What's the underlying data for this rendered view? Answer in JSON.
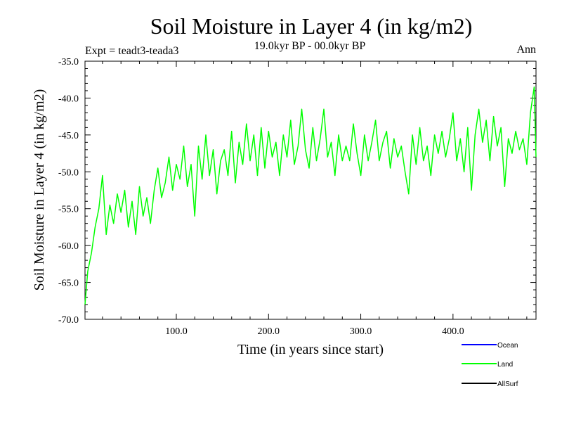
{
  "chart_data": {
    "type": "line",
    "title": "Soil Moisture in Layer 4 (in kg/m2)",
    "subtitle": "19.0kyr BP - 00.0kyr BP",
    "left_annotation": "Expt = teadt3-teada3",
    "right_annotation": "Ann",
    "xlabel": "Time (in years since start)",
    "ylabel": "Soil Moisture in Layer 4 (in kg/m2)",
    "xlim": [
      1,
      490
    ],
    "ylim": [
      -70.0,
      -35.0
    ],
    "x_ticks": [
      100,
      200,
      300,
      400
    ],
    "x_tick_labels": [
      "100.0",
      "200.0",
      "300.0",
      "400.0"
    ],
    "y_ticks": [
      -35,
      -40,
      -45,
      -50,
      -55,
      -60,
      -65,
      -70
    ],
    "y_tick_labels": [
      "-35.0",
      "-40.0",
      "-45.0",
      "-50.0",
      "-55.0",
      "-60.0",
      "-65.0",
      "-70.0"
    ],
    "legend": [
      {
        "name": "Ocean",
        "color": "#0000ff"
      },
      {
        "name": "Land",
        "color": "#00ff00"
      },
      {
        "name": "AllSurf",
        "color": "#000000"
      }
    ],
    "series": [
      {
        "name": "Land",
        "color": "#00ff00",
        "x": [
          1,
          4,
          8,
          12,
          16,
          20,
          24,
          28,
          32,
          36,
          40,
          44,
          48,
          52,
          56,
          60,
          64,
          68,
          72,
          76,
          80,
          84,
          88,
          92,
          96,
          100,
          104,
          108,
          112,
          116,
          120,
          124,
          128,
          132,
          136,
          140,
          144,
          148,
          152,
          156,
          160,
          164,
          168,
          172,
          176,
          180,
          184,
          188,
          192,
          196,
          200,
          204,
          208,
          212,
          216,
          220,
          224,
          228,
          232,
          236,
          240,
          244,
          248,
          252,
          256,
          260,
          264,
          268,
          272,
          276,
          280,
          284,
          288,
          292,
          296,
          300,
          304,
          308,
          312,
          316,
          320,
          324,
          328,
          332,
          336,
          340,
          344,
          348,
          352,
          356,
          360,
          364,
          368,
          372,
          376,
          380,
          384,
          388,
          392,
          396,
          400,
          404,
          408,
          412,
          416,
          420,
          424,
          428,
          432,
          436,
          440,
          444,
          448,
          452,
          456,
          460,
          464,
          468,
          472,
          476,
          480,
          484,
          488,
          490
        ],
        "values": [
          -68.0,
          -63.5,
          -61.0,
          -57.5,
          -55.0,
          -50.5,
          -58.5,
          -54.5,
          -57.0,
          -53.0,
          -55.5,
          -52.5,
          -57.5,
          -54.0,
          -58.5,
          -52.0,
          -56.0,
          -53.5,
          -57.0,
          -52.5,
          -49.5,
          -53.5,
          -51.5,
          -48.0,
          -52.5,
          -49.0,
          -51.0,
          -46.5,
          -52.0,
          -49.0,
          -56.0,
          -46.5,
          -51.0,
          -45.0,
          -50.5,
          -47.0,
          -53.0,
          -48.5,
          -47.0,
          -50.5,
          -44.5,
          -51.5,
          -46.0,
          -49.0,
          -43.5,
          -48.5,
          -45.0,
          -50.5,
          -44.0,
          -49.5,
          -44.5,
          -48.0,
          -46.0,
          -50.5,
          -45.0,
          -48.0,
          -43.0,
          -49.0,
          -46.5,
          -41.5,
          -47.0,
          -49.5,
          -44.0,
          -48.5,
          -45.5,
          -41.5,
          -48.0,
          -46.0,
          -50.5,
          -45.0,
          -48.5,
          -46.5,
          -48.5,
          -43.5,
          -47.5,
          -50.5,
          -45.0,
          -48.5,
          -46.0,
          -43.0,
          -48.5,
          -46.0,
          -44.5,
          -49.5,
          -45.5,
          -48.0,
          -46.5,
          -50.0,
          -53.0,
          -45.0,
          -49.0,
          -44.0,
          -48.5,
          -46.5,
          -50.5,
          -45.0,
          -47.5,
          -44.5,
          -48.0,
          -45.5,
          -42.0,
          -48.5,
          -45.5,
          -50.0,
          -44.0,
          -52.5,
          -45.0,
          -41.5,
          -46.0,
          -43.0,
          -48.5,
          -42.5,
          -46.5,
          -44.0,
          -52.0,
          -45.5,
          -47.5,
          -44.5,
          -47.0,
          -45.5,
          -49.0,
          -42.0,
          -38.5,
          -48.0
        ]
      }
    ]
  }
}
